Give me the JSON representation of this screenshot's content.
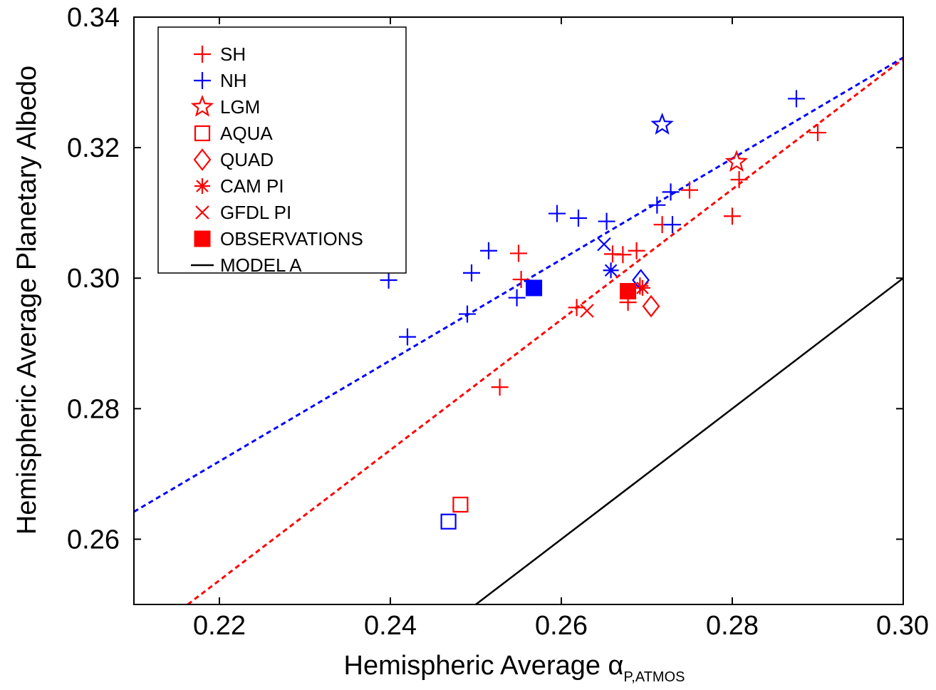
{
  "chart_data": {
    "type": "scatter",
    "xlabel": "Hemispheric Average α",
    "xlabel_subscript": "P,ATMOS",
    "ylabel": "Hemispheric Average Planetary Albedo",
    "xlim": [
      0.21,
      0.3
    ],
    "ylim": [
      0.25,
      0.34
    ],
    "xticks": [
      "0.22",
      "0.24",
      "0.26",
      "0.28",
      "0.30"
    ],
    "xtick_values": [
      0.22,
      0.24,
      0.26,
      0.28,
      0.3
    ],
    "yticks": [
      "0.26",
      "0.28",
      "0.30",
      "0.32",
      "0.34"
    ],
    "ytick_values": [
      0.26,
      0.28,
      0.3,
      0.32,
      0.34
    ],
    "grid": false,
    "legend_placement": "top-left",
    "colors": {
      "SH": "#ff0000",
      "NH": "#0000ff",
      "model": "#000000"
    },
    "series": [
      {
        "name": "SH",
        "marker": "plus",
        "color": "#ff0000",
        "points": [
          [
            0.255,
            0.3038
          ],
          [
            0.2553,
            0.2998
          ],
          [
            0.2528,
            0.2833
          ],
          [
            0.2618,
            0.2955
          ],
          [
            0.266,
            0.3037
          ],
          [
            0.2672,
            0.3036
          ],
          [
            0.2688,
            0.3042
          ],
          [
            0.2678,
            0.2963
          ],
          [
            0.2692,
            0.2988
          ],
          [
            0.2718,
            0.3082
          ],
          [
            0.275,
            0.3135
          ],
          [
            0.28,
            0.3095
          ],
          [
            0.2808,
            0.3151
          ],
          [
            0.29,
            0.3223
          ]
        ]
      },
      {
        "name": "NH",
        "marker": "plus",
        "color": "#0000ff",
        "points": [
          [
            0.2398,
            0.2997
          ],
          [
            0.242,
            0.291
          ],
          [
            0.249,
            0.2945
          ],
          [
            0.2495,
            0.3008
          ],
          [
            0.2515,
            0.3042
          ],
          [
            0.2548,
            0.297
          ],
          [
            0.2595,
            0.3099
          ],
          [
            0.262,
            0.3092
          ],
          [
            0.2653,
            0.3087
          ],
          [
            0.2712,
            0.3112
          ],
          [
            0.2728,
            0.3132
          ],
          [
            0.273,
            0.3082
          ],
          [
            0.2875,
            0.3275
          ]
        ]
      },
      {
        "name": "LGM",
        "marker": "star",
        "color": "#ff0000",
        "points": [
          {
            "x": 0.2805,
            "y": 0.3178,
            "color": "#ff0000"
          },
          {
            "x": 0.2718,
            "y": 0.3235,
            "color": "#0000ff"
          }
        ]
      },
      {
        "name": "AQUA",
        "marker": "square",
        "color": "#ff0000",
        "points": [
          {
            "x": 0.2482,
            "y": 0.2653,
            "color": "#ff0000"
          },
          {
            "x": 0.2468,
            "y": 0.2627,
            "color": "#0000ff"
          }
        ]
      },
      {
        "name": "QUAD",
        "marker": "diamond",
        "color": "#ff0000",
        "points": [
          {
            "x": 0.2705,
            "y": 0.2957,
            "color": "#ff0000"
          },
          {
            "x": 0.2693,
            "y": 0.2997,
            "color": "#0000ff"
          }
        ]
      },
      {
        "name": "CAM PI",
        "marker": "asterisk",
        "color": "#ff0000",
        "points": [
          {
            "x": 0.2695,
            "y": 0.2985,
            "color": "#ff0000"
          },
          {
            "x": 0.2658,
            "y": 0.3012,
            "color": "#0000ff"
          }
        ]
      },
      {
        "name": "GFDL PI",
        "marker": "x",
        "color": "#ff0000",
        "points": [
          {
            "x": 0.263,
            "y": 0.295,
            "color": "#ff0000"
          },
          {
            "x": 0.265,
            "y": 0.3052,
            "color": "#0000ff"
          }
        ]
      },
      {
        "name": "OBSERVATIONS",
        "marker": "filled-square",
        "color": "#ff0000",
        "points": [
          {
            "x": 0.2678,
            "y": 0.298,
            "color": "#ff0000"
          },
          {
            "x": 0.2568,
            "y": 0.2985,
            "color": "#0000ff"
          }
        ]
      }
    ],
    "lines": [
      {
        "name": "MODEL A",
        "style": "solid",
        "color": "#000000",
        "from": [
          0.25,
          0.25
        ],
        "to": [
          0.3,
          0.3
        ]
      },
      {
        "name": "",
        "style": "dashed",
        "color": "#0000ff",
        "from": [
          0.21,
          0.2642
        ],
        "to": [
          0.3,
          0.3338
        ]
      },
      {
        "name": "",
        "style": "dashed",
        "color": "#ff0000",
        "from": [
          0.2163,
          0.25
        ],
        "to": [
          0.3,
          0.3336
        ]
      }
    ],
    "legend": [
      {
        "label": "SH",
        "marker": "plus",
        "color": "#ff0000"
      },
      {
        "label": "NH",
        "marker": "plus",
        "color": "#0000ff"
      },
      {
        "label": "LGM",
        "marker": "star",
        "color": "#ff0000"
      },
      {
        "label": "AQUA",
        "marker": "square",
        "color": "#ff0000"
      },
      {
        "label": "QUAD",
        "marker": "diamond",
        "color": "#ff0000"
      },
      {
        "label": "CAM PI",
        "marker": "asterisk",
        "color": "#ff0000"
      },
      {
        "label": "GFDL PI",
        "marker": "x",
        "color": "#ff0000"
      },
      {
        "label": "OBSERVATIONS",
        "marker": "filled-square",
        "color": "#ff0000"
      },
      {
        "label": "MODEL A",
        "marker": "line",
        "color": "#000000"
      }
    ]
  }
}
